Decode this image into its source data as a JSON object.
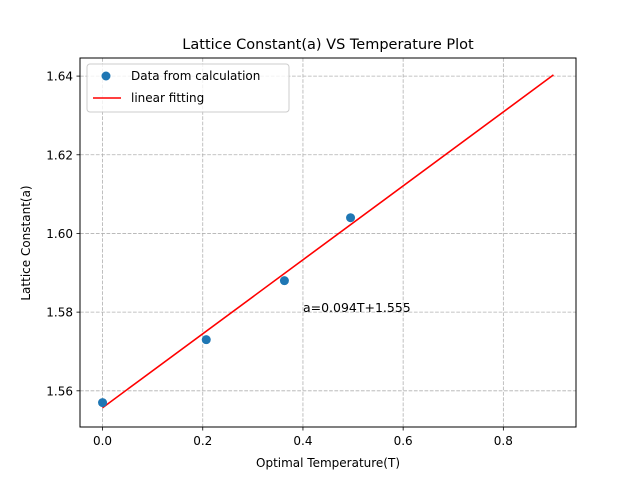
{
  "chart_data": {
    "type": "scatter",
    "title": "Lattice Constant(a) VS Temperature Plot",
    "xlabel": "Optimal Temperature(T)",
    "ylabel": "Lattice Constant(a)",
    "xlim": [
      -0.045,
      0.945
    ],
    "ylim": [
      1.5508,
      1.6446
    ],
    "xticks": [
      0.0,
      0.2,
      0.4,
      0.6,
      0.8
    ],
    "xtick_labels": [
      "0.0",
      "0.2",
      "0.4",
      "0.6",
      "0.8"
    ],
    "yticks": [
      1.56,
      1.58,
      1.6,
      1.62,
      1.64
    ],
    "ytick_labels": [
      "1.56",
      "1.58",
      "1.60",
      "1.62",
      "1.64"
    ],
    "grid": true,
    "legend_position": "top-left",
    "series": [
      {
        "name": "Data from calculation",
        "kind": "scatter",
        "color": "#1f77b4",
        "x": [
          0.0,
          0.207,
          0.363,
          0.495
        ],
        "y": [
          1.557,
          1.573,
          1.588,
          1.604
        ]
      },
      {
        "name": "linear fitting",
        "kind": "line",
        "color": "#ff0000",
        "x": [
          0.0,
          0.9
        ],
        "y": [
          1.5557,
          1.6403
        ]
      }
    ],
    "annotations": [
      {
        "text": "a=0.094T+1.555",
        "x": 0.4,
        "y": 1.58
      }
    ]
  }
}
